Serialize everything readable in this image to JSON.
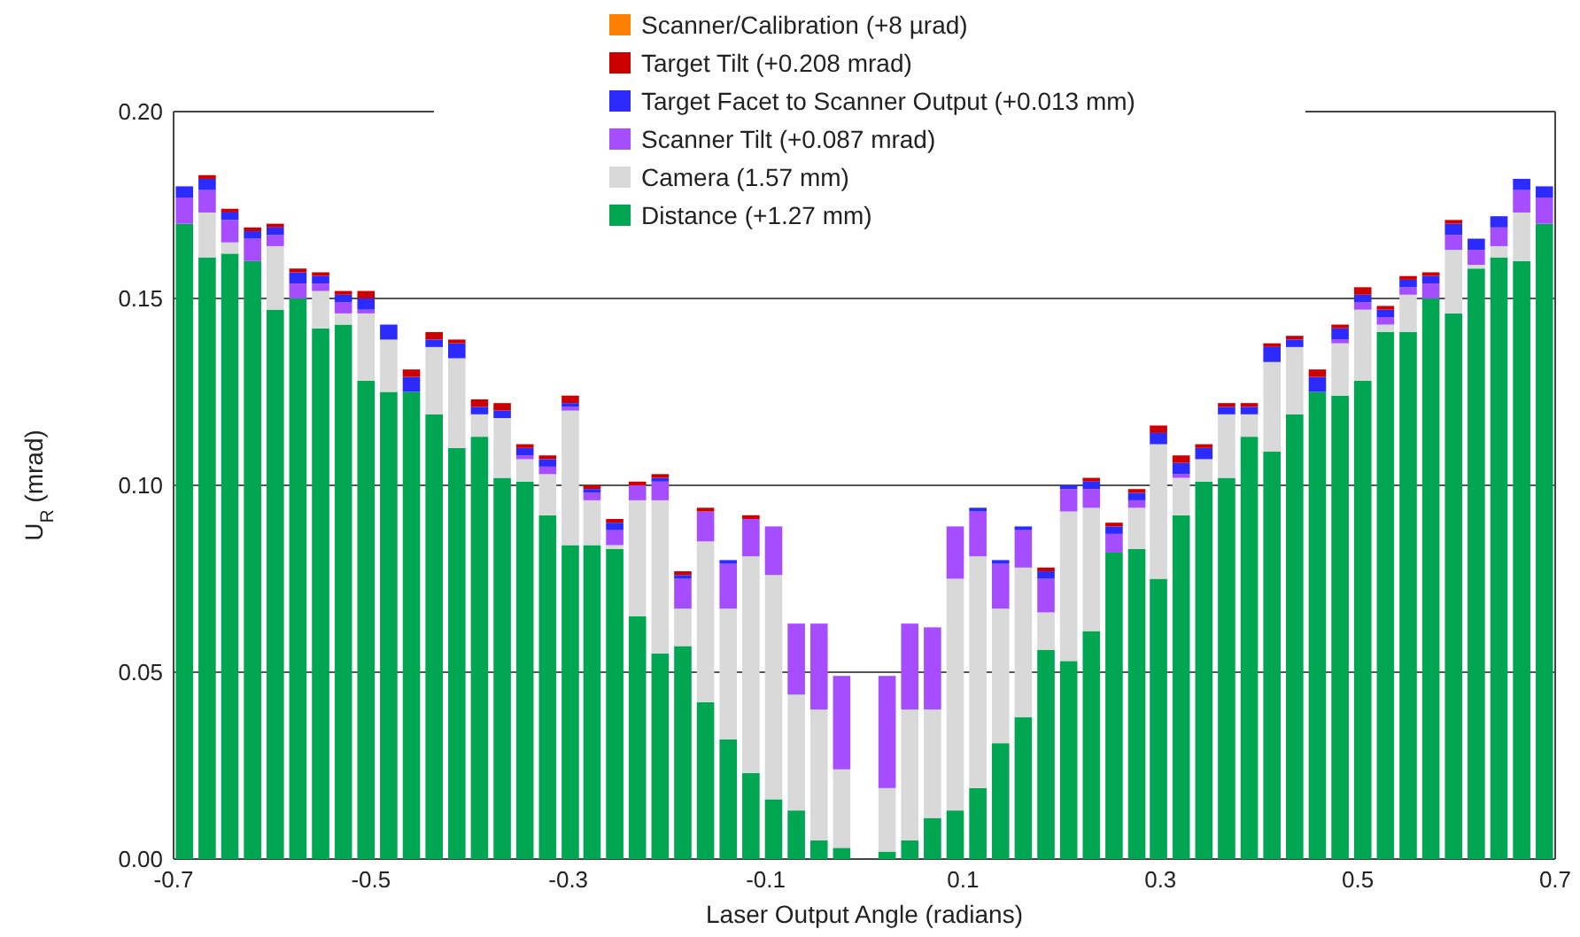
{
  "chart_data": {
    "type": "bar",
    "stacked": true,
    "xlabel": "Laser Output Angle (radians)",
    "ylabel": "U$_{R}$ (mrad)",
    "x": [
      -0.689,
      -0.666,
      -0.643,
      -0.62,
      -0.597,
      -0.574,
      -0.551,
      -0.528,
      -0.505,
      -0.482,
      -0.459,
      -0.436,
      -0.413,
      -0.39,
      -0.367,
      -0.344,
      -0.321,
      -0.298,
      -0.276,
      -0.253,
      -0.23,
      -0.207,
      -0.184,
      -0.161,
      -0.138,
      -0.115,
      -0.092,
      -0.069,
      -0.046,
      -0.023,
      0.023,
      0.046,
      0.069,
      0.092,
      0.115,
      0.138,
      0.161,
      0.184,
      0.207,
      0.23,
      0.253,
      0.276,
      0.298,
      0.321,
      0.344,
      0.367,
      0.39,
      0.413,
      0.436,
      0.459,
      0.482,
      0.505,
      0.528,
      0.551,
      0.574,
      0.597,
      0.62,
      0.643,
      0.666,
      0.689
    ],
    "series": [
      {
        "name": "Distance (+1.27 mm)",
        "color": "#00a651",
        "values": [
          0.17,
          0.161,
          0.162,
          0.16,
          0.147,
          0.15,
          0.142,
          0.143,
          0.128,
          0.125,
          0.125,
          0.119,
          0.11,
          0.113,
          0.102,
          0.101,
          0.092,
          0.084,
          0.084,
          0.083,
          0.065,
          0.055,
          0.057,
          0.042,
          0.032,
          0.023,
          0.016,
          0.013,
          0.005,
          0.003,
          0.002,
          0.005,
          0.011,
          0.013,
          0.019,
          0.031,
          0.038,
          0.056,
          0.053,
          0.061,
          0.082,
          0.083,
          0.075,
          0.092,
          0.101,
          0.102,
          0.113,
          0.109,
          0.119,
          0.125,
          0.124,
          0.128,
          0.141,
          0.141,
          0.15,
          0.146,
          0.158,
          0.161,
          0.16,
          0.17
        ]
      },
      {
        "name": "Camera (1.57 mm)",
        "color": "#d9d9d9",
        "values": [
          0,
          0.012,
          0.003,
          0,
          0.017,
          0,
          0.01,
          0.003,
          0.018,
          0.014,
          0,
          0.018,
          0.024,
          0.006,
          0.016,
          0.006,
          0.011,
          0.036,
          0.012,
          0.001,
          0.031,
          0.041,
          0.01,
          0.043,
          0.035,
          0.058,
          0.06,
          0.031,
          0.035,
          0.021,
          0.017,
          0.035,
          0.029,
          0.062,
          0.062,
          0.036,
          0.04,
          0.01,
          0.04,
          0.033,
          0,
          0.011,
          0.036,
          0.01,
          0.006,
          0.017,
          0.006,
          0.024,
          0.018,
          0,
          0.014,
          0.019,
          0.002,
          0.01,
          0,
          0.017,
          0.001,
          0.003,
          0.013,
          0
        ]
      },
      {
        "name": "Scanner Tilt (+0.087 mrad)",
        "color": "#a64dff",
        "values": [
          0.007,
          0.006,
          0.006,
          0.006,
          0.003,
          0.004,
          0.002,
          0.003,
          0.001,
          0,
          0,
          0,
          0,
          0,
          0,
          0.001,
          0.002,
          0.001,
          0.002,
          0.004,
          0.004,
          0.005,
          0.008,
          0.008,
          0.012,
          0.01,
          0.013,
          0.019,
          0.023,
          0.025,
          0.03,
          0.023,
          0.022,
          0.014,
          0.012,
          0.012,
          0.01,
          0.009,
          0.006,
          0.005,
          0.005,
          0.002,
          0,
          0.001,
          0,
          0,
          0,
          0,
          0,
          0,
          0.001,
          0.002,
          0.002,
          0.002,
          0.004,
          0.004,
          0.004,
          0.005,
          0.006,
          0.007
        ]
      },
      {
        "name": "Target Facet to Scanner Output (+0.013 mm)",
        "color": "#2b2bff",
        "values": [
          0.003,
          0.003,
          0.002,
          0.002,
          0.002,
          0.003,
          0.002,
          0.002,
          0.003,
          0.004,
          0.004,
          0.002,
          0.004,
          0.002,
          0.002,
          0.002,
          0.002,
          0.001,
          0.001,
          0.002,
          0,
          0.001,
          0.001,
          0,
          0.001,
          0,
          0,
          0,
          0,
          0,
          0,
          0,
          0,
          0,
          0.001,
          0.001,
          0.001,
          0.002,
          0.001,
          0.002,
          0.002,
          0.002,
          0.003,
          0.003,
          0.003,
          0.002,
          0.002,
          0.004,
          0.002,
          0.004,
          0.003,
          0.002,
          0.002,
          0.002,
          0.002,
          0.003,
          0.003,
          0.003,
          0.003,
          0.003
        ]
      },
      {
        "name": "Target Tilt (+0.208 mrad)",
        "color": "#cc0000",
        "values": [
          0,
          0.001,
          0.001,
          0.001,
          0.001,
          0.001,
          0.001,
          0.001,
          0.002,
          0,
          0.002,
          0.002,
          0.001,
          0.002,
          0.002,
          0.001,
          0.001,
          0.002,
          0.001,
          0.001,
          0.001,
          0.001,
          0.001,
          0.001,
          0,
          0.001,
          0,
          0,
          0,
          0,
          0,
          0,
          0,
          0,
          0,
          0,
          0,
          0.001,
          0,
          0.001,
          0.001,
          0.001,
          0.002,
          0.002,
          0.001,
          0.001,
          0.001,
          0.001,
          0.001,
          0.002,
          0.001,
          0.002,
          0.001,
          0.001,
          0.001,
          0.001,
          0,
          0,
          0,
          0
        ]
      },
      {
        "name": "Scanner/Calibration (+8 µrad)",
        "color": "#ff8000",
        "values": [
          0,
          0,
          0,
          0,
          0,
          0,
          0,
          0,
          0,
          0,
          0,
          0,
          0,
          0,
          0,
          0,
          0,
          0,
          0,
          0,
          0,
          0,
          0,
          0,
          0,
          0,
          0,
          0,
          0,
          0,
          0,
          0,
          0,
          0,
          0,
          0,
          0,
          0,
          0,
          0,
          0,
          0,
          0,
          0,
          0,
          0,
          0,
          0,
          0,
          0,
          0,
          0,
          0,
          0,
          0,
          0,
          0,
          0,
          0,
          0
        ]
      }
    ],
    "xlim": [
      -0.7,
      0.7
    ],
    "xticks": [
      -0.7,
      -0.5,
      -0.3,
      -0.1,
      0.1,
      0.3,
      0.5,
      0.7
    ],
    "ylim": [
      0,
      0.2
    ],
    "yticks": [
      {
        "value": 0,
        "label": "0.00"
      },
      {
        "value": 0.05,
        "label": "0.05"
      },
      {
        "value": 0.1,
        "label": "0.10"
      },
      {
        "value": 0.15,
        "label": "0.15"
      },
      {
        "value": 0.2,
        "label": "0.20"
      }
    ],
    "grid": "y",
    "legend": "top"
  }
}
